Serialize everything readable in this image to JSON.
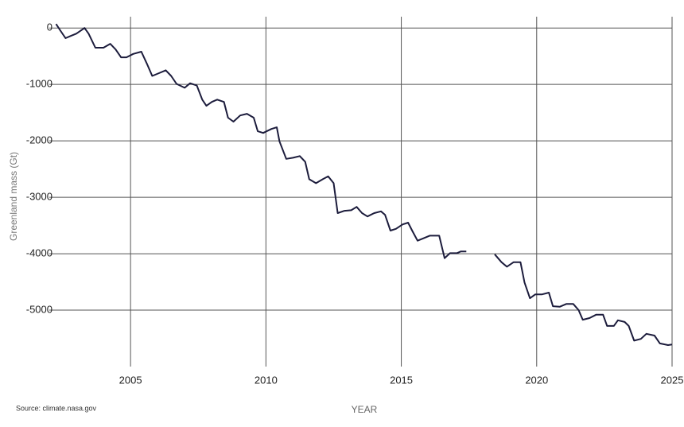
{
  "chart_data": {
    "type": "line",
    "y_label": "Greenland mass (Gt)",
    "x_label": "YEAR",
    "source": "Source: climate.nasa.gov",
    "color": "#1c1c3c",
    "grid": true,
    "xlim": [
      2002,
      2025
    ],
    "xticks": [
      2005,
      2010,
      2015,
      2020,
      2025
    ],
    "ylim": [
      -6000,
      200
    ],
    "yticks": [
      0,
      -1000,
      -2000,
      -3000,
      -4000,
      -5000
    ],
    "x": [
      2002.25,
      2002.4,
      2002.6,
      2002.8,
      2003.0,
      2003.3,
      2003.45,
      2003.7,
      2004.0,
      2004.25,
      2004.45,
      2004.65,
      2004.85,
      2005.1,
      2005.4,
      2005.6,
      2005.8,
      2006.05,
      2006.3,
      2006.5,
      2006.7,
      2007.0,
      2007.2,
      2007.45,
      2007.65,
      2007.8,
      2008.0,
      2008.2,
      2008.45,
      2008.6,
      2008.8,
      2009.05,
      2009.3,
      2009.55,
      2009.7,
      2009.9,
      2010.2,
      2010.4,
      2010.5,
      2010.75,
      2011.0,
      2011.25,
      2011.45,
      2011.6,
      2011.85,
      2012.1,
      2012.3,
      2012.5,
      2012.65,
      2012.9,
      2013.15,
      2013.35,
      2013.55,
      2013.75,
      2014.0,
      2014.25,
      2014.4,
      2014.6,
      2014.8,
      2015.05,
      2015.25,
      2015.4,
      2015.6,
      2015.8,
      2016.05,
      2016.4,
      2016.6,
      2016.8,
      2017.05,
      2017.2,
      2017.4,
      2017.9,
      2018.45,
      2018.7,
      2018.9,
      2019.15,
      2019.4,
      2019.55,
      2019.75,
      2019.95,
      2020.2,
      2020.45,
      2020.6,
      2020.85,
      2021.1,
      2021.35,
      2021.55,
      2021.7,
      2021.95,
      2022.2,
      2022.45,
      2022.6,
      2022.85,
      2023.0,
      2023.25,
      2023.4,
      2023.6,
      2023.85,
      2024.05,
      2024.35,
      2024.55,
      2024.85,
      2025.0
    ],
    "values": [
      70,
      -40,
      -180,
      -140,
      -100,
      0,
      -100,
      -350,
      -350,
      -280,
      -380,
      -520,
      -520,
      -460,
      -420,
      -630,
      -850,
      -800,
      -750,
      -850,
      -990,
      -1060,
      -980,
      -1020,
      -1270,
      -1380,
      -1310,
      -1270,
      -1310,
      -1590,
      -1660,
      -1550,
      -1520,
      -1590,
      -1830,
      -1860,
      -1790,
      -1760,
      -2010,
      -2320,
      -2300,
      -2270,
      -2370,
      -2680,
      -2750,
      -2680,
      -2630,
      -2750,
      -3280,
      -3240,
      -3230,
      -3170,
      -3280,
      -3340,
      -3280,
      -3250,
      -3310,
      -3590,
      -3560,
      -3480,
      -3450,
      -3590,
      -3770,
      -3730,
      -3680,
      -3680,
      -4080,
      -3990,
      -3990,
      -3960,
      -3960,
      null,
      -4010,
      -4150,
      -4230,
      -4150,
      -4150,
      -4510,
      -4790,
      -4720,
      -4720,
      -4690,
      -4930,
      -4940,
      -4890,
      -4890,
      -5000,
      -5170,
      -5140,
      -5080,
      -5080,
      -5280,
      -5280,
      -5180,
      -5210,
      -5280,
      -5540,
      -5510,
      -5420,
      -5450,
      -5590,
      -5620,
      -5610
    ]
  }
}
